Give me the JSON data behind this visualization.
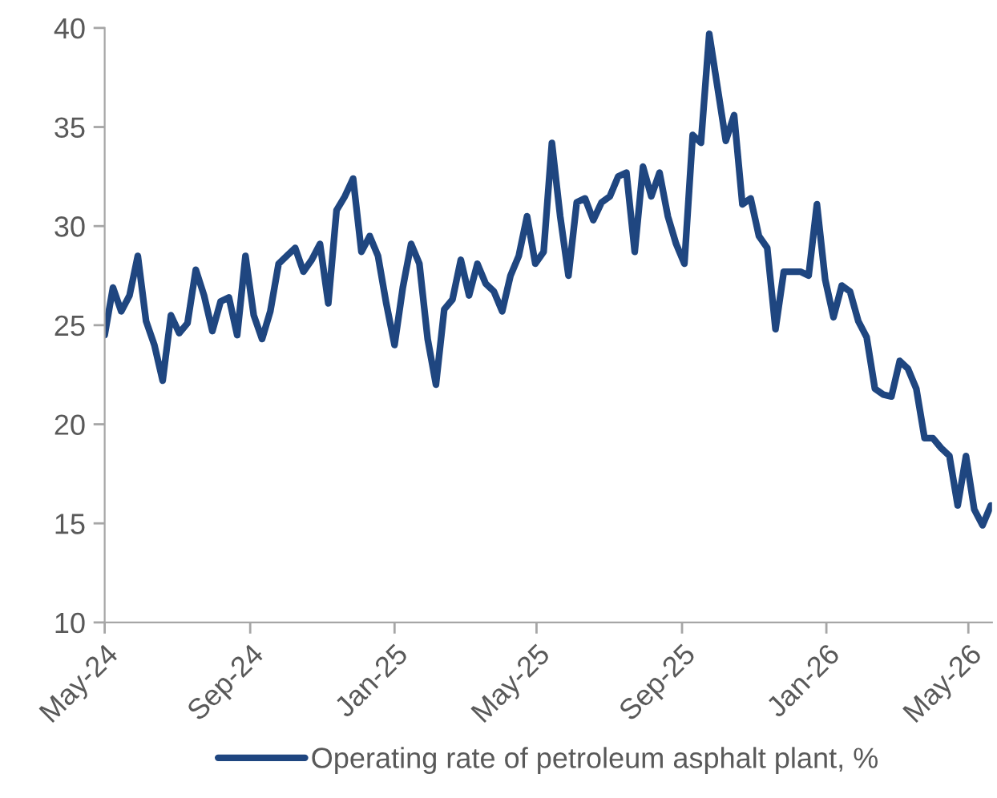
{
  "chart_data": {
    "type": "line",
    "x": [
      "2024-05-01",
      "2024-05-08",
      "2024-05-15",
      "2024-05-22",
      "2024-05-29",
      "2024-06-05",
      "2024-06-12",
      "2024-06-19",
      "2024-06-26",
      "2024-07-03",
      "2024-07-10",
      "2024-07-17",
      "2024-07-24",
      "2024-07-31",
      "2024-08-07",
      "2024-08-14",
      "2024-08-21",
      "2024-08-28",
      "2024-09-04",
      "2024-09-11",
      "2024-09-18",
      "2024-09-25",
      "2024-10-02",
      "2024-10-09",
      "2024-10-16",
      "2024-10-23",
      "2024-10-30",
      "2024-11-06",
      "2024-11-13",
      "2024-11-20",
      "2024-11-27",
      "2024-12-04",
      "2024-12-11",
      "2024-12-18",
      "2024-12-25",
      "2025-01-01",
      "2025-01-08",
      "2025-01-15",
      "2025-01-22",
      "2025-01-29",
      "2025-02-05",
      "2025-02-12",
      "2025-02-19",
      "2025-02-26",
      "2025-03-05",
      "2025-03-12",
      "2025-03-19",
      "2025-03-26",
      "2025-04-02",
      "2025-04-09",
      "2025-04-16",
      "2025-04-23",
      "2025-04-30",
      "2025-05-07",
      "2025-05-14",
      "2025-05-21",
      "2025-05-28",
      "2025-06-04",
      "2025-06-11",
      "2025-06-18",
      "2025-06-25",
      "2025-07-02",
      "2025-07-09",
      "2025-07-16",
      "2025-07-23",
      "2025-07-30",
      "2025-08-06",
      "2025-08-13",
      "2025-08-20",
      "2025-08-27",
      "2025-09-03",
      "2025-09-10",
      "2025-09-17",
      "2025-09-24",
      "2025-10-01",
      "2025-10-08",
      "2025-10-15",
      "2025-10-22",
      "2025-10-29",
      "2025-11-05",
      "2025-11-12",
      "2025-11-19",
      "2025-11-26",
      "2025-12-03",
      "2025-12-10",
      "2025-12-17",
      "2025-12-24",
      "2025-12-31",
      "2026-01-07",
      "2026-01-14",
      "2026-01-21",
      "2026-01-28",
      "2026-02-04",
      "2026-02-11",
      "2026-02-18",
      "2026-02-25",
      "2026-03-04",
      "2026-03-11",
      "2026-03-18",
      "2026-03-25",
      "2026-04-01",
      "2026-04-08",
      "2026-04-15",
      "2026-04-22",
      "2026-04-29",
      "2026-05-06",
      "2026-05-13",
      "2026-05-20"
    ],
    "series": [
      {
        "name": "Operating rate of petroleum asphalt plant, %",
        "color": "#1f4680",
        "values": [
          24.5,
          26.9,
          25.7,
          26.5,
          28.5,
          25.2,
          24.0,
          22.2,
          25.5,
          24.6,
          25.1,
          27.8,
          26.5,
          24.7,
          26.2,
          26.4,
          24.5,
          28.5,
          25.5,
          24.3,
          25.7,
          28.1,
          28.5,
          28.9,
          27.7,
          28.3,
          29.1,
          26.1,
          30.8,
          31.5,
          32.4,
          28.7,
          29.5,
          28.5,
          26.1,
          24.0,
          26.9,
          29.1,
          28.1,
          24.3,
          22.0,
          25.8,
          26.3,
          28.3,
          26.5,
          28.1,
          27.1,
          26.7,
          25.7,
          27.5,
          28.5,
          30.5,
          28.1,
          28.7,
          34.2,
          30.5,
          27.5,
          31.2,
          31.4,
          30.3,
          31.2,
          31.5,
          32.5,
          32.7,
          28.7,
          33.0,
          31.5,
          32.7,
          30.5,
          29.1,
          28.1,
          34.6,
          34.2,
          39.7,
          37.0,
          34.3,
          35.6,
          31.1,
          31.4,
          29.5,
          28.9,
          24.8,
          27.7,
          27.7,
          27.7,
          27.5,
          31.1,
          27.3,
          25.4,
          27.0,
          26.7,
          25.2,
          24.4,
          21.8,
          21.5,
          21.4,
          23.2,
          22.8,
          21.8,
          19.3,
          19.3,
          18.8,
          18.4,
          15.9,
          18.4,
          15.7,
          14.9,
          15.9
        ]
      }
    ],
    "xlim": [
      "2024-05-01",
      "2026-05-21"
    ],
    "xticks": [
      {
        "value": "2024-05-01",
        "label": "May-24"
      },
      {
        "value": "2024-09-01",
        "label": "Sep-24"
      },
      {
        "value": "2025-01-01",
        "label": "Jan-25"
      },
      {
        "value": "2025-05-01",
        "label": "May-25"
      },
      {
        "value": "2025-09-01",
        "label": "Sep-25"
      },
      {
        "value": "2026-01-01",
        "label": "Jan-26"
      },
      {
        "value": "2026-05-01",
        "label": "May-26"
      }
    ],
    "ylim": [
      10,
      40
    ],
    "yticks": [
      10,
      15,
      20,
      25,
      30,
      35,
      40
    ],
    "grid": false,
    "legend": "bottom",
    "marker": "none",
    "line_style": "solid"
  }
}
